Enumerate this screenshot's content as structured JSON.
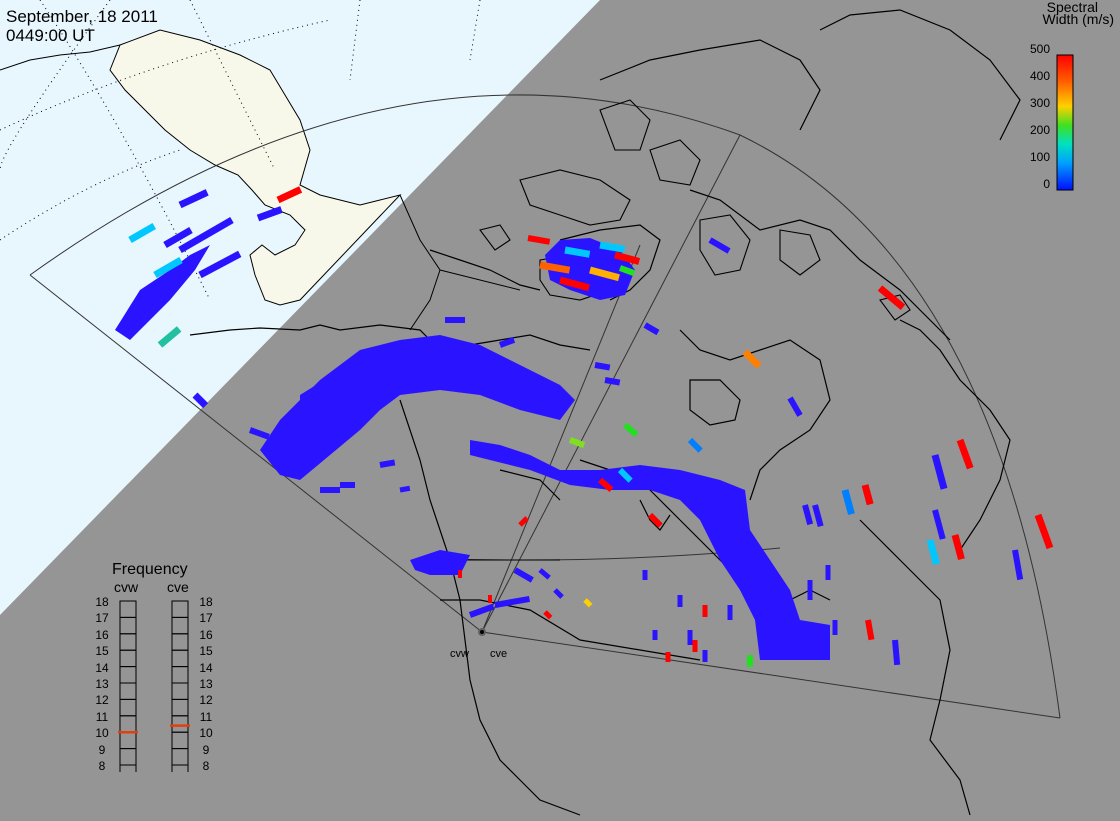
{
  "header": {
    "date": "September, 18 2011",
    "time": "0449:00 UT"
  },
  "colorbar": {
    "title_line1": "Spectral",
    "title_line2": "Width (m/s)",
    "ticks": [
      "500",
      "400",
      "300",
      "200",
      "100",
      "0"
    ],
    "colors": [
      "#ff0000",
      "#ff6000",
      "#ffb000",
      "#c0e000",
      "#20e020",
      "#00e0b0",
      "#00c8ff",
      "#0080ff",
      "#0020ff"
    ]
  },
  "frequency": {
    "title": "Frequency",
    "left_label": "cvw",
    "right_label": "cve",
    "ticks": [
      "18",
      "17",
      "16",
      "15",
      "14",
      "13",
      "12",
      "11",
      "10",
      "9",
      "8"
    ],
    "cvw_value": 10.5,
    "cve_value": 10.9,
    "marker_color": "#e04010"
  },
  "radars": {
    "west": "cvw",
    "east": "cve"
  },
  "colors": {
    "background": "#959595",
    "ocean": "#e8f6fd",
    "land_night": "#f8f8ea",
    "scatter_blue": "#2a14ff",
    "scatter_red": "#ff0000",
    "scatter_cyan": "#00c8ff"
  }
}
